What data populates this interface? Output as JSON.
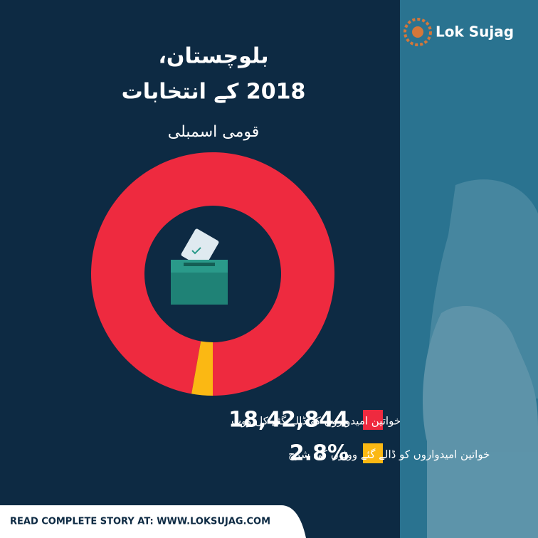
{
  "brand": "Lok Sujag",
  "footer": "READ COMPLETE STORY AT: WWW.LOKSUJAG.COM",
  "chart_data": {
    "type": "donut",
    "title": "بلوچستان،",
    "title_line2": "2018 کے انتخابات",
    "subtitle": "قومی اسمبلی",
    "categories": [
      "خواتین امیدواروں کو ڈالے گئے کل ووٹ",
      "خواتین امیدواروں کو ڈالے گئے ووٹوں کی شرح"
    ],
    "figures": [
      "18,42,844",
      "2.8%"
    ],
    "values": [
      97.2,
      2.8
    ],
    "colors": [
      "#ee2a3f",
      "#fbb813"
    ]
  }
}
